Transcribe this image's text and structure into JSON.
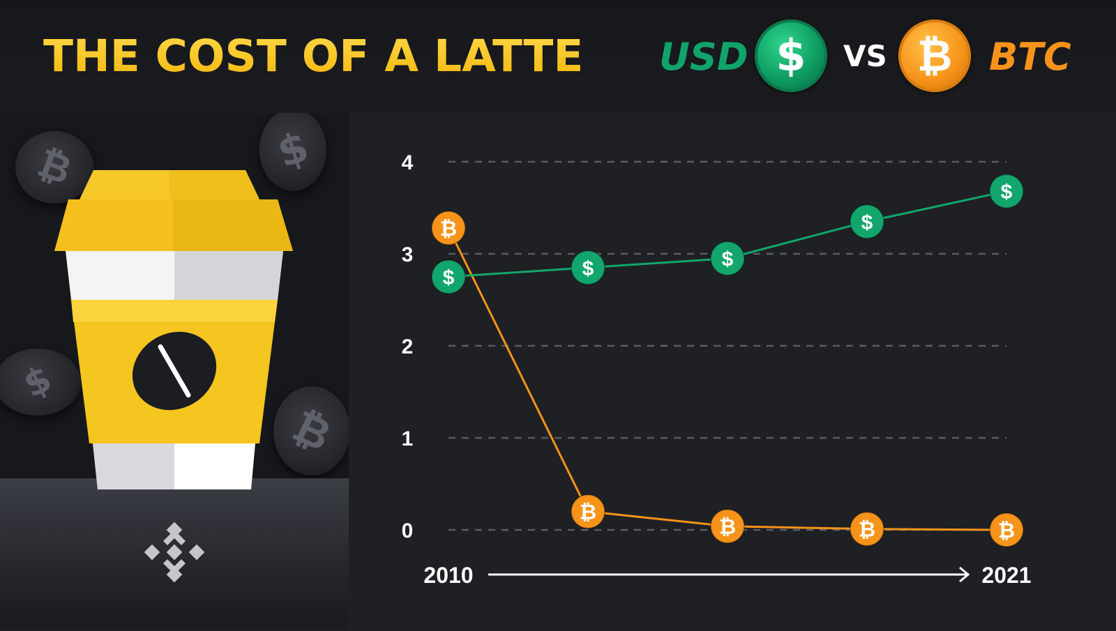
{
  "header": {
    "title": "THE COST OF A LATTE",
    "usd_label": "USD",
    "vs_label": "VS",
    "btc_label": "BTC",
    "usd_symbol": "$",
    "btc_symbol": "₿"
  },
  "colors": {
    "title": "#f0b90b",
    "usd": "#12a66c",
    "btc": "#f7931a",
    "background": "#1f2024"
  },
  "icons": [
    "dollar-coin-icon",
    "bitcoin-coin-icon",
    "latte-cup-icon",
    "coffee-bean-icon",
    "binance-logo-icon"
  ],
  "chart_data": {
    "type": "line",
    "x": [
      "2010",
      "",
      "",
      "",
      "2021"
    ],
    "x_start_label": "2010",
    "x_end_label": "2021",
    "y_ticks": [
      0,
      1,
      2,
      3,
      4
    ],
    "ylim": [
      0,
      4
    ],
    "grid": true,
    "series": [
      {
        "name": "USD",
        "marker": "$",
        "color": "#12a66c",
        "values": [
          2.75,
          2.85,
          2.95,
          3.35,
          3.68
        ]
      },
      {
        "name": "BTC",
        "marker": "₿",
        "color": "#f7931a",
        "values": [
          3.28,
          0.2,
          0.04,
          0.01,
          0.0
        ]
      }
    ]
  }
}
